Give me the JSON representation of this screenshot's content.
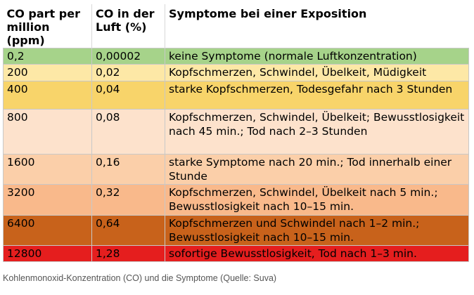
{
  "table": {
    "headers": [
      "CO part per million (ppm)",
      "CO in der Luft (%)",
      "Symptome bei einer Exposition"
    ],
    "rows": [
      {
        "ppm": "0,2",
        "percent": "0,00002",
        "symptoms": "keine Symptome (normale Luftkonzentration)",
        "color": "#a6d38a"
      },
      {
        "ppm": "200",
        "percent": "0,02",
        "symptoms": "Kopfschmerzen, Schwindel, Übelkeit, Müdigkeit",
        "color": "#fde8a6"
      },
      {
        "ppm": "400",
        "percent": "0,04",
        "symptoms": "starke Kopfschmerzen, Todesgefahr nach 3 Stunden",
        "color": "#f8d46a"
      },
      {
        "ppm": "800",
        "percent": "0,08",
        "symptoms": "Kopfschmerzen, Schwindel, Übelkeit; Bewusstlosigkeit nach 45 min.; Tod nach 2–3 Stunden",
        "color": "#fde2cc"
      },
      {
        "ppm": "1600",
        "percent": "0,16",
        "symptoms": "starke Symptome nach 20 min.; Tod innerhalb einer Stunde",
        "color": "#fbcfa9"
      },
      {
        "ppm": "3200",
        "percent": "0,32",
        "symptoms": "Kopfschmerzen, Schwindel, Übelkeit nach 5 min.; Bewusstlosigkeit nach 10–15 min.",
        "color": "#f9b98b"
      },
      {
        "ppm": "6400",
        "percent": "0,64",
        "symptoms": "Kopfschmerzen und Schwindel nach 1–2 min.; Bewusstlosigkeit nach 10–15 min.",
        "color": "#c8621b"
      },
      {
        "ppm": "12800",
        "percent": "1,28",
        "symptoms": "sofortige Bewusstlosigkeit, Tod nach 1–3 min.",
        "color": "#e51e1e"
      }
    ]
  },
  "caption": "Kohlenmonoxid-Konzentration (CO) und die Symptome (Quelle: Suva)"
}
